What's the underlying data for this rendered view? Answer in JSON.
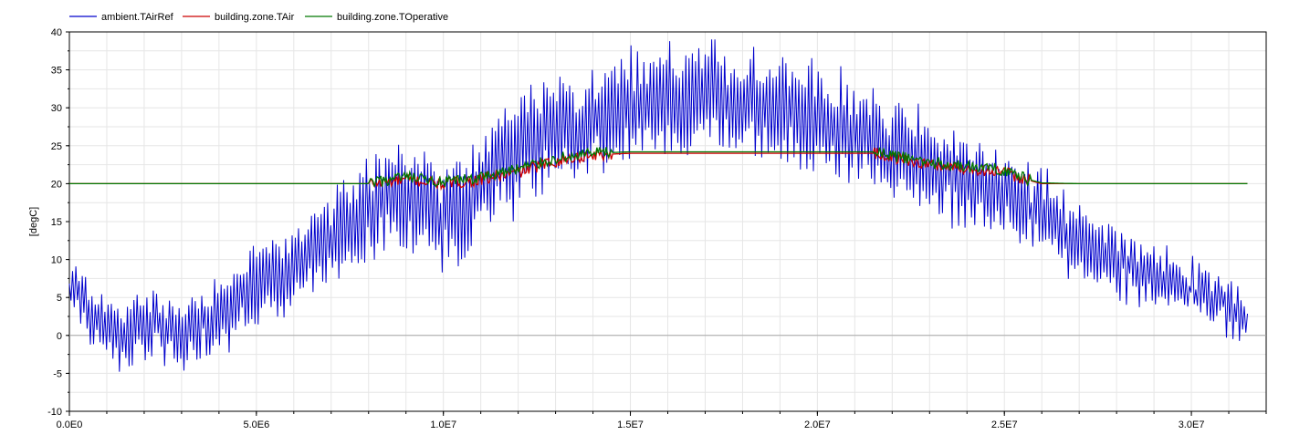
{
  "chart_data": {
    "type": "line",
    "title": "",
    "xlabel": "",
    "ylabel": "[degC]",
    "xlim": [
      0,
      32000000
    ],
    "ylim": [
      -10,
      40
    ],
    "x_ticks": [
      {
        "value": 0,
        "label": "0.0E0"
      },
      {
        "value": 5000000,
        "label": "5.0E6"
      },
      {
        "value": 10000000,
        "label": "1.0E7"
      },
      {
        "value": 15000000,
        "label": "1.5E7"
      },
      {
        "value": 20000000,
        "label": "2.0E7"
      },
      {
        "value": 25000000,
        "label": "2.5E7"
      },
      {
        "value": 30000000,
        "label": "3.0E7"
      }
    ],
    "y_ticks": [
      {
        "value": -10,
        "label": "-10"
      },
      {
        "value": -5,
        "label": "-5"
      },
      {
        "value": 0,
        "label": "0"
      },
      {
        "value": 5,
        "label": "5"
      },
      {
        "value": 10,
        "label": "10"
      },
      {
        "value": 15,
        "label": "15"
      },
      {
        "value": 20,
        "label": "20"
      },
      {
        "value": 25,
        "label": "25"
      },
      {
        "value": 30,
        "label": "30"
      },
      {
        "value": 35,
        "label": "35"
      },
      {
        "value": 40,
        "label": "40"
      }
    ],
    "grid": true,
    "legend_position": "top-left",
    "series": [
      {
        "name": "ambient.TAirRef",
        "color": "#0000cc",
        "x": [
          0,
          500000,
          1000000,
          1500000,
          2000000,
          2500000,
          3000000,
          3500000,
          4000000,
          4500000,
          5000000,
          5500000,
          6000000,
          6500000,
          7000000,
          7500000,
          8000000,
          8500000,
          9000000,
          9500000,
          10000000,
          10500000,
          11000000,
          11500000,
          12000000,
          12500000,
          13000000,
          13500000,
          14000000,
          14500000,
          15000000,
          15500000,
          16000000,
          16500000,
          17000000,
          17500000,
          18000000,
          18500000,
          19000000,
          19500000,
          20000000,
          20500000,
          21000000,
          21500000,
          22000000,
          22500000,
          23000000,
          23500000,
          24000000,
          24500000,
          25000000,
          25500000,
          26000000,
          26500000,
          27000000,
          27500000,
          28000000,
          28500000,
          29000000,
          29500000,
          30000000,
          30500000,
          31000000,
          31500000
        ],
        "y": [
          7,
          3,
          1,
          -1,
          2,
          1,
          0,
          2,
          3,
          5,
          7,
          8,
          9,
          12,
          12,
          15,
          17,
          19,
          18,
          17,
          16,
          17,
          19,
          22,
          24,
          26,
          27,
          27,
          28,
          29,
          30,
          30,
          31,
          31,
          32,
          31,
          31,
          30,
          30,
          29,
          29,
          28,
          27,
          26,
          25,
          24,
          23,
          22,
          21,
          20,
          19,
          17,
          16,
          14,
          12,
          11,
          10,
          9,
          8,
          7,
          6,
          5,
          4,
          2
        ],
        "y_min": -4.8,
        "y_max": 39
      },
      {
        "name": "building.zone.TAir",
        "color": "#cc0000",
        "x": [
          0,
          8000000,
          9000000,
          10000000,
          11000000,
          12000000,
          13000000,
          14000000,
          15000000,
          20000000,
          21500000,
          22000000,
          23000000,
          24000000,
          25000000,
          25600000,
          26000000,
          27000000,
          31500000
        ],
        "y": [
          20,
          20,
          20.5,
          20,
          20.5,
          21.5,
          23,
          23.8,
          24,
          24,
          24,
          23.5,
          22.5,
          22,
          21.5,
          20.5,
          20,
          20,
          20
        ]
      },
      {
        "name": "building.zone.TOperative",
        "color": "#007700",
        "x": [
          0,
          8000000,
          9000000,
          10000000,
          11000000,
          12000000,
          13000000,
          14000000,
          15000000,
          20000000,
          21500000,
          22000000,
          23000000,
          24000000,
          25000000,
          25600000,
          26000000,
          27000000,
          31500000
        ],
        "y": [
          20,
          20,
          20.8,
          20.1,
          20.8,
          22,
          23.3,
          24,
          24.2,
          24.2,
          24.2,
          23.7,
          22.8,
          22.3,
          21.8,
          20.6,
          20.1,
          20,
          20
        ]
      }
    ]
  }
}
